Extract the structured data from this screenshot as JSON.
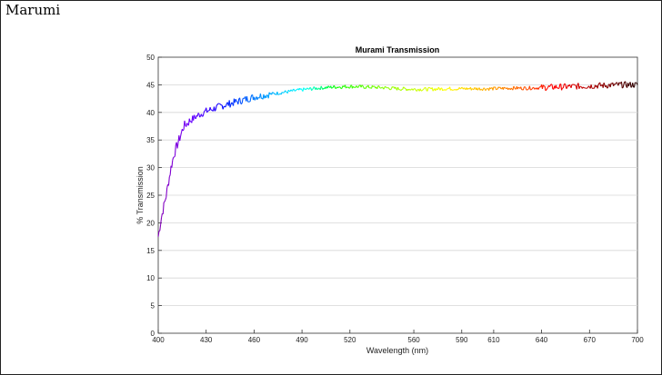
{
  "page": {
    "title": "Marumi"
  },
  "chart_data": {
    "type": "line",
    "title": "Murami Transmission",
    "xlabel": "Wavelength (nm)",
    "ylabel": "% Transmission",
    "xlim": [
      400,
      700
    ],
    "ylim": [
      0,
      50
    ],
    "xticks": [
      400,
      430,
      460,
      490,
      520,
      560,
      590,
      610,
      640,
      670,
      700
    ],
    "yticks": [
      0,
      5,
      10,
      15,
      20,
      25,
      30,
      35,
      40,
      45,
      50
    ],
    "grid": true,
    "legend": "none",
    "series": [
      {
        "x": [
          400,
          402,
          405,
          408,
          410,
          413,
          416,
          420,
          425,
          430,
          440,
          450,
          460,
          470,
          480,
          490,
          500,
          510,
          520,
          530,
          540,
          550,
          560,
          570,
          580,
          590,
          600,
          610,
          620,
          630,
          640,
          650,
          660,
          670,
          680,
          690,
          700
        ],
        "y": [
          17.5,
          21,
          25,
          30,
          32.5,
          35,
          37.5,
          38.5,
          39.5,
          40.2,
          41.2,
          42,
          42.8,
          43.3,
          43.7,
          44.1,
          44.4,
          44.6,
          44.7,
          44.6,
          44.5,
          44.3,
          44.2,
          44.2,
          44.3,
          44.3,
          44.3,
          44.3,
          44.4,
          44.4,
          44.5,
          44.6,
          44.7,
          44.8,
          44.9,
          45,
          45
        ],
        "colormap": "visible-spectrum"
      }
    ]
  }
}
